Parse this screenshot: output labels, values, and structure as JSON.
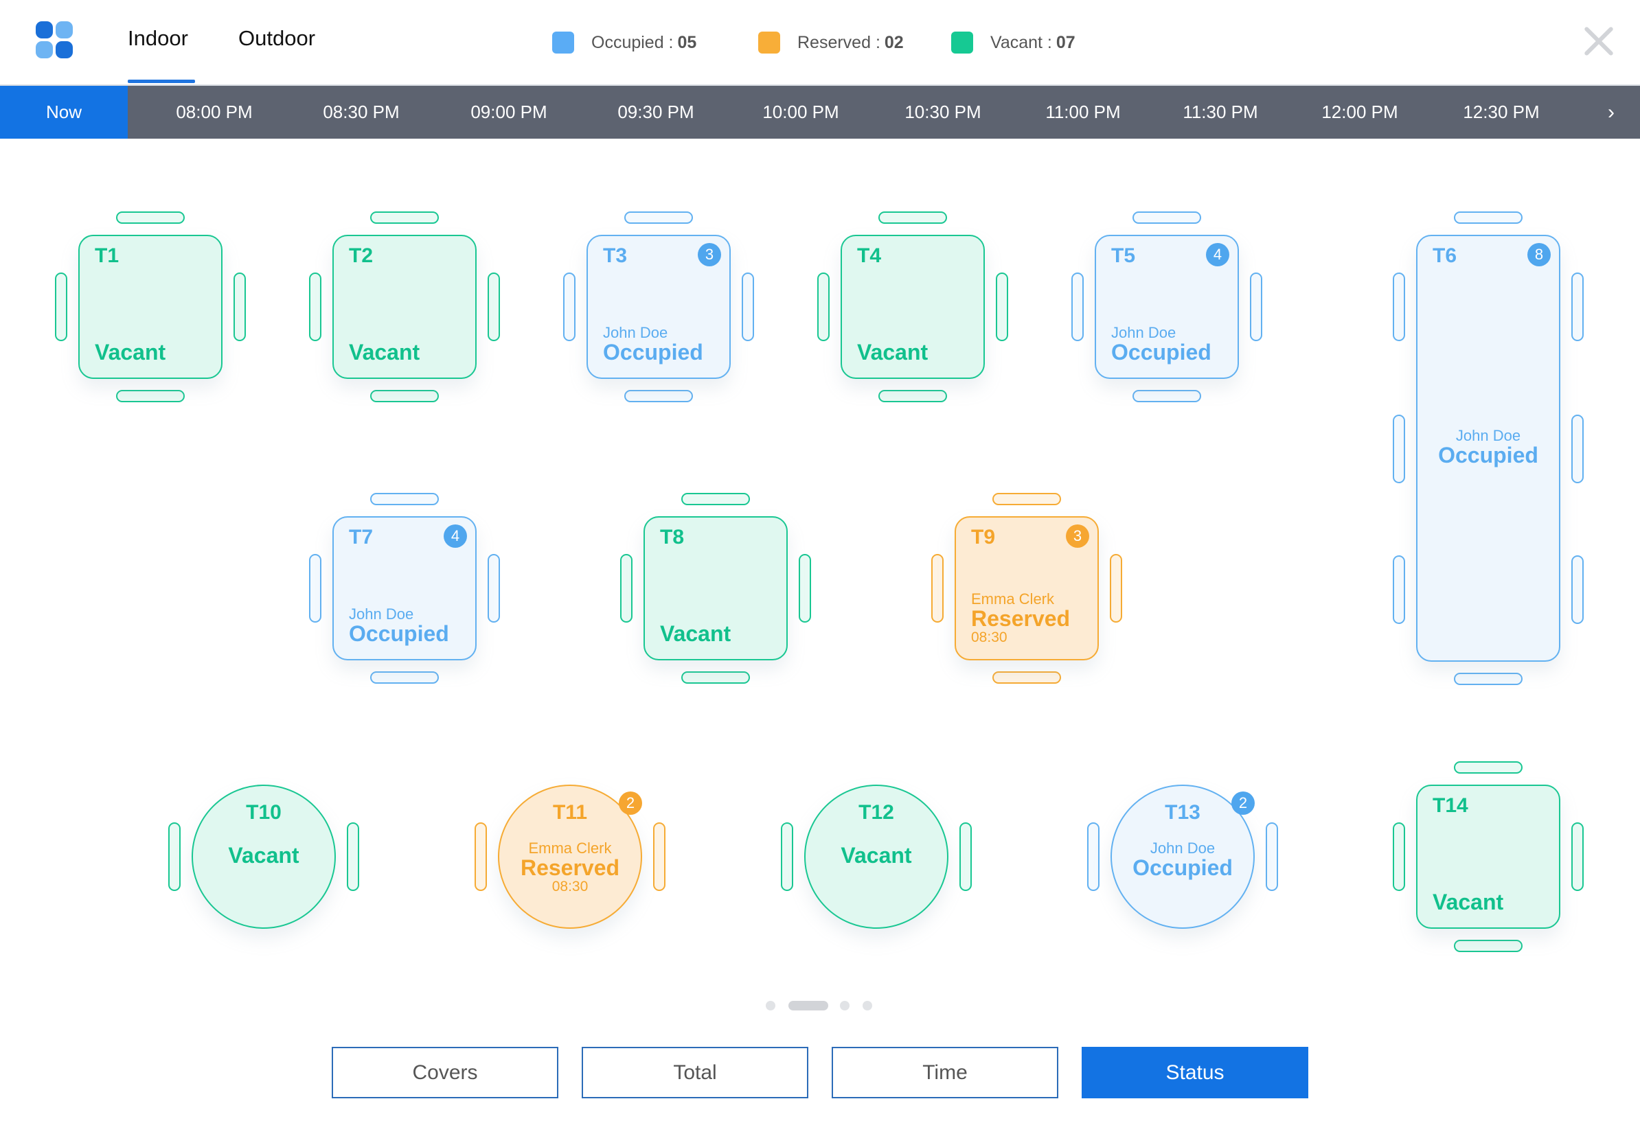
{
  "header": {
    "tabs": [
      {
        "label": "Indoor",
        "active": true
      },
      {
        "label": "Outdoor",
        "active": false
      }
    ],
    "legend": [
      {
        "label": "Occupied :",
        "count": "05",
        "color": "#5aacf5"
      },
      {
        "label": "Reserved :",
        "count": "02",
        "color": "#f8ae38"
      },
      {
        "label": "Vacant :",
        "count": "07",
        "color": "#16c993"
      }
    ],
    "close_icon": "close-icon",
    "logo_icon": "app-logo-icon"
  },
  "timeline": {
    "now_label": "Now",
    "slots": [
      "08:00 PM",
      "08:30 PM",
      "09:00 PM",
      "09:30 PM",
      "10:00 PM",
      "10:30 PM",
      "11:00 PM",
      "11:30 PM",
      "12:00 PM",
      "12:30 PM"
    ],
    "next_icon": "chevron-right-icon"
  },
  "colors": {
    "vacant": "#19c792",
    "occupied": "#62b1f1",
    "reserved": "#f6ab34",
    "accent": "#1373e3",
    "timeline_bg": "#5d6370"
  },
  "tables": [
    {
      "name": "T1",
      "status": "Vacant"
    },
    {
      "name": "T2",
      "status": "Vacant"
    },
    {
      "name": "T3",
      "status": "Occupied",
      "guest": "John Doe",
      "covers": "3"
    },
    {
      "name": "T4",
      "status": "Vacant"
    },
    {
      "name": "T5",
      "status": "Occupied",
      "guest": "John Doe",
      "covers": "4"
    },
    {
      "name": "T6",
      "status": "Occupied",
      "guest": "John Doe",
      "covers": "8"
    },
    {
      "name": "T7",
      "status": "Occupied",
      "guest": "John Doe",
      "covers": "4"
    },
    {
      "name": "T8",
      "status": "Vacant"
    },
    {
      "name": "T9",
      "status": "Reserved",
      "guest": "Emma Clerk",
      "time": "08:30",
      "covers": "3"
    },
    {
      "name": "T10",
      "status": "Vacant"
    },
    {
      "name": "T11",
      "status": "Reserved",
      "guest": "Emma Clerk",
      "time": "08:30",
      "covers": "2"
    },
    {
      "name": "T12",
      "status": "Vacant"
    },
    {
      "name": "T13",
      "status": "Occupied",
      "guest": "John Doe",
      "covers": "2"
    },
    {
      "name": "T14",
      "status": "Vacant"
    }
  ],
  "pager": {
    "pages": 4,
    "current": 2
  },
  "footer": {
    "buttons": [
      {
        "label": "Covers",
        "active": false
      },
      {
        "label": "Total",
        "active": false
      },
      {
        "label": "Time",
        "active": false
      },
      {
        "label": "Status",
        "active": true
      }
    ]
  }
}
